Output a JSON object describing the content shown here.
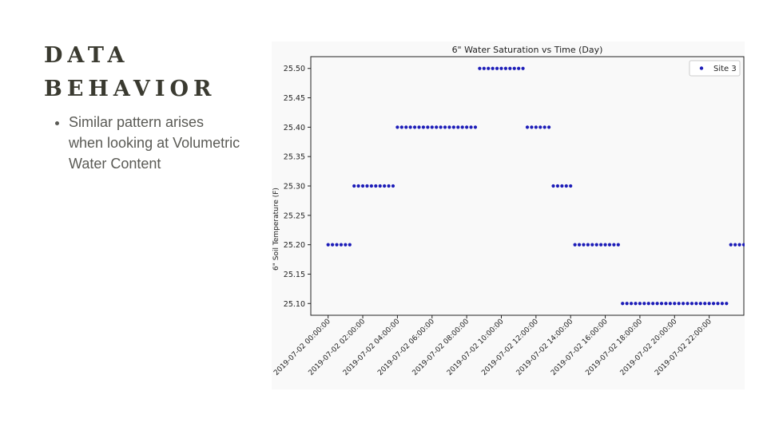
{
  "slide": {
    "title_line1": "DATA",
    "title_line2": "BEHAVIOR",
    "bullets": [
      "Similar pattern arises when looking at Volumetric Water Content"
    ]
  },
  "chart_data": {
    "type": "scatter",
    "title": "6\" Water Saturation vs Time (Day)",
    "xlabel": "",
    "ylabel": "6\" Soil Temperature (F)",
    "ylim": [
      25.08,
      25.52
    ],
    "xlim": [
      "2019-07-01 23:00",
      "2019-07-03 00:00"
    ],
    "y_ticks": [
      "25.10",
      "25.15",
      "25.20",
      "25.25",
      "25.30",
      "25.35",
      "25.40",
      "25.45",
      "25.50"
    ],
    "x_ticks": [
      "2019-07-02 00:00:00",
      "2019-07-02 02:00:00",
      "2019-07-02 04:00:00",
      "2019-07-02 06:00:00",
      "2019-07-02 08:00:00",
      "2019-07-02 10:00:00",
      "2019-07-02 12:00:00",
      "2019-07-02 14:00:00",
      "2019-07-02 16:00:00",
      "2019-07-02 18:00:00",
      "2019-07-02 20:00:00",
      "2019-07-02 22:00:00"
    ],
    "grid": false,
    "legend_position": "top-right",
    "color": "#1c1cb8",
    "series": [
      {
        "name": "Site 3",
        "points": [
          [
            "2019-07-02 00:00",
            25.2
          ],
          [
            "2019-07-02 00:15",
            25.2
          ],
          [
            "2019-07-02 00:30",
            25.2
          ],
          [
            "2019-07-02 00:45",
            25.2
          ],
          [
            "2019-07-02 01:00",
            25.2
          ],
          [
            "2019-07-02 01:15",
            25.2
          ],
          [
            "2019-07-02 01:30",
            25.3
          ],
          [
            "2019-07-02 01:45",
            25.3
          ],
          [
            "2019-07-02 02:00",
            25.3
          ],
          [
            "2019-07-02 02:15",
            25.3
          ],
          [
            "2019-07-02 02:30",
            25.3
          ],
          [
            "2019-07-02 02:45",
            25.3
          ],
          [
            "2019-07-02 03:00",
            25.3
          ],
          [
            "2019-07-02 03:15",
            25.3
          ],
          [
            "2019-07-02 03:30",
            25.3
          ],
          [
            "2019-07-02 03:45",
            25.3
          ],
          [
            "2019-07-02 04:00",
            25.4
          ],
          [
            "2019-07-02 04:15",
            25.4
          ],
          [
            "2019-07-02 04:30",
            25.4
          ],
          [
            "2019-07-02 04:45",
            25.4
          ],
          [
            "2019-07-02 05:00",
            25.4
          ],
          [
            "2019-07-02 05:15",
            25.4
          ],
          [
            "2019-07-02 05:30",
            25.4
          ],
          [
            "2019-07-02 05:45",
            25.4
          ],
          [
            "2019-07-02 06:00",
            25.4
          ],
          [
            "2019-07-02 06:15",
            25.4
          ],
          [
            "2019-07-02 06:30",
            25.4
          ],
          [
            "2019-07-02 06:45",
            25.4
          ],
          [
            "2019-07-02 07:00",
            25.4
          ],
          [
            "2019-07-02 07:15",
            25.4
          ],
          [
            "2019-07-02 07:30",
            25.4
          ],
          [
            "2019-07-02 07:45",
            25.4
          ],
          [
            "2019-07-02 08:00",
            25.4
          ],
          [
            "2019-07-02 08:15",
            25.4
          ],
          [
            "2019-07-02 08:30",
            25.4
          ],
          [
            "2019-07-02 08:45",
            25.5
          ],
          [
            "2019-07-02 09:00",
            25.5
          ],
          [
            "2019-07-02 09:15",
            25.5
          ],
          [
            "2019-07-02 09:30",
            25.5
          ],
          [
            "2019-07-02 09:45",
            25.5
          ],
          [
            "2019-07-02 10:00",
            25.5
          ],
          [
            "2019-07-02 10:15",
            25.5
          ],
          [
            "2019-07-02 10:30",
            25.5
          ],
          [
            "2019-07-02 10:45",
            25.5
          ],
          [
            "2019-07-02 11:00",
            25.5
          ],
          [
            "2019-07-02 11:15",
            25.5
          ],
          [
            "2019-07-02 11:30",
            25.4
          ],
          [
            "2019-07-02 11:45",
            25.4
          ],
          [
            "2019-07-02 12:00",
            25.4
          ],
          [
            "2019-07-02 12:15",
            25.4
          ],
          [
            "2019-07-02 12:30",
            25.4
          ],
          [
            "2019-07-02 12:45",
            25.4
          ],
          [
            "2019-07-02 13:00",
            25.3
          ],
          [
            "2019-07-02 13:15",
            25.3
          ],
          [
            "2019-07-02 13:30",
            25.3
          ],
          [
            "2019-07-02 13:45",
            25.3
          ],
          [
            "2019-07-02 14:00",
            25.3
          ],
          [
            "2019-07-02 14:15",
            25.2
          ],
          [
            "2019-07-02 14:30",
            25.2
          ],
          [
            "2019-07-02 14:45",
            25.2
          ],
          [
            "2019-07-02 15:00",
            25.2
          ],
          [
            "2019-07-02 15:15",
            25.2
          ],
          [
            "2019-07-02 15:30",
            25.2
          ],
          [
            "2019-07-02 15:45",
            25.2
          ],
          [
            "2019-07-02 16:00",
            25.2
          ],
          [
            "2019-07-02 16:15",
            25.2
          ],
          [
            "2019-07-02 16:30",
            25.2
          ],
          [
            "2019-07-02 16:45",
            25.2
          ],
          [
            "2019-07-02 17:00",
            25.1
          ],
          [
            "2019-07-02 17:15",
            25.1
          ],
          [
            "2019-07-02 17:30",
            25.1
          ],
          [
            "2019-07-02 17:45",
            25.1
          ],
          [
            "2019-07-02 18:00",
            25.1
          ],
          [
            "2019-07-02 18:15",
            25.1
          ],
          [
            "2019-07-02 18:30",
            25.1
          ],
          [
            "2019-07-02 18:45",
            25.1
          ],
          [
            "2019-07-02 19:00",
            25.1
          ],
          [
            "2019-07-02 19:15",
            25.1
          ],
          [
            "2019-07-02 19:30",
            25.1
          ],
          [
            "2019-07-02 19:45",
            25.1
          ],
          [
            "2019-07-02 20:00",
            25.1
          ],
          [
            "2019-07-02 20:15",
            25.1
          ],
          [
            "2019-07-02 20:30",
            25.1
          ],
          [
            "2019-07-02 20:45",
            25.1
          ],
          [
            "2019-07-02 21:00",
            25.1
          ],
          [
            "2019-07-02 21:15",
            25.1
          ],
          [
            "2019-07-02 21:30",
            25.1
          ],
          [
            "2019-07-02 21:45",
            25.1
          ],
          [
            "2019-07-02 22:00",
            25.1
          ],
          [
            "2019-07-02 22:15",
            25.1
          ],
          [
            "2019-07-02 22:30",
            25.1
          ],
          [
            "2019-07-02 22:45",
            25.1
          ],
          [
            "2019-07-02 23:00",
            25.1
          ],
          [
            "2019-07-02 23:15",
            25.2
          ],
          [
            "2019-07-02 23:30",
            25.2
          ],
          [
            "2019-07-02 23:45",
            25.2
          ],
          [
            "2019-07-03 00:00",
            25.2
          ],
          [
            "2019-07-03 00:15",
            25.2
          ]
        ]
      }
    ]
  }
}
